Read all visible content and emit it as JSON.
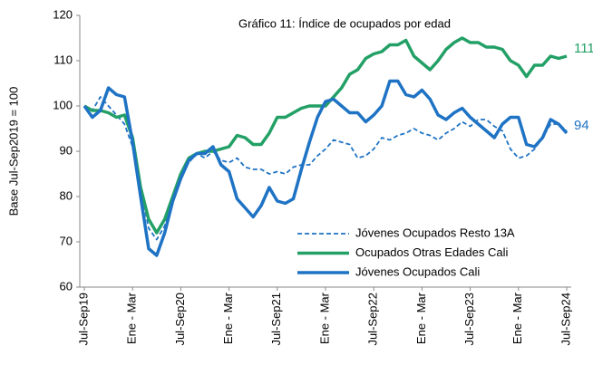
{
  "chart_data": {
    "type": "line",
    "title": "Gráfico 11: Índice de ocupados por edad",
    "y_label": "Base Jul-Sep2019 = 100",
    "categories": [
      "Jul-Sep19",
      null,
      null,
      null,
      null,
      null,
      "Ene - Mar",
      null,
      null,
      null,
      null,
      null,
      "Jul-Sep20",
      null,
      null,
      null,
      null,
      null,
      "Ene - Mar",
      null,
      null,
      null,
      null,
      null,
      "Jul-Sep21",
      null,
      null,
      null,
      null,
      null,
      "Ene - Mar",
      null,
      null,
      null,
      null,
      null,
      "Jul-Sep22",
      null,
      null,
      null,
      null,
      null,
      "Ene - Mar",
      null,
      null,
      null,
      null,
      null,
      "Jul-Sep23",
      null,
      null,
      null,
      null,
      null,
      "Ene - Mar",
      null,
      null,
      null,
      null,
      null,
      "Jul-Sep24"
    ],
    "ylim": [
      60,
      120
    ],
    "yticks": [
      60,
      70,
      80,
      90,
      100,
      110,
      120
    ],
    "grid": false,
    "legend": "lower right",
    "series": [
      {
        "name": "Jóvenes Ocupados Resto 13A",
        "color": "#1f73c4",
        "line_style": "dashed",
        "values": [
          100,
          99,
          102,
          100,
          98,
          96,
          91,
          82,
          73,
          70.5,
          73.5,
          79,
          84.5,
          87.5,
          89.5,
          88.5,
          90,
          88,
          87.5,
          88.5,
          86.5,
          86,
          86,
          85,
          85.5,
          85,
          86.5,
          87,
          87,
          89,
          90.5,
          92.5,
          92,
          91.5,
          88.5,
          89,
          90.5,
          93,
          92.5,
          93.5,
          94,
          95,
          94,
          93.5,
          92.5,
          94,
          95,
          96.5,
          95.5,
          97,
          97,
          95.5,
          94.5,
          90.5,
          88.5,
          89,
          90.5,
          93,
          96,
          96,
          94.5
        ]
      },
      {
        "name": "Ocupados Otras Edades Cali",
        "color": "#23a066",
        "line_style": "solid",
        "end_label": true,
        "values": [
          100,
          99,
          99,
          98.5,
          97.5,
          98,
          93,
          82,
          75,
          72,
          75,
          80,
          85,
          88.5,
          89.5,
          90,
          90,
          90.5,
          91,
          93.5,
          93,
          91.5,
          91.5,
          94,
          97.5,
          97.5,
          98.5,
          99.5,
          100,
          100,
          100,
          102,
          104,
          107,
          108,
          110.5,
          111.5,
          112,
          113.5,
          113.5,
          114.5,
          111,
          109.5,
          108,
          110,
          112.5,
          114,
          115,
          114,
          114,
          113,
          113,
          112.5,
          110,
          109,
          106.5,
          109,
          109,
          111,
          110.5,
          111
        ]
      },
      {
        "name": "Jóvenes Ocupados Cali",
        "color": "#1f73c4",
        "line_style": "solid",
        "end_label": true,
        "values": [
          100,
          97.5,
          99,
          104,
          102.5,
          102,
          92,
          80,
          68.5,
          67,
          72,
          79,
          84,
          88,
          89.5,
          89.5,
          91,
          87,
          85.5,
          79.5,
          77.5,
          75.5,
          78,
          82,
          79,
          78.5,
          79.5,
          86,
          92,
          97.5,
          101,
          101.5,
          100,
          98.5,
          98.5,
          96.5,
          98,
          100,
          105.5,
          105.5,
          102.5,
          102,
          103.5,
          101.5,
          98,
          97,
          98.5,
          99.5,
          97.5,
          96,
          94.5,
          93,
          96,
          97.5,
          97.5,
          91.5,
          91,
          93,
          97,
          96,
          94
        ]
      }
    ]
  }
}
